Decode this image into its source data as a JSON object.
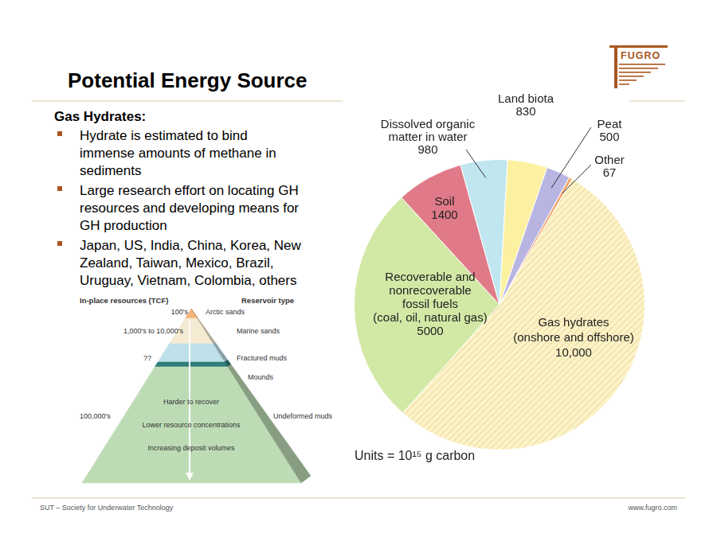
{
  "slide": {
    "title": "Potential Energy Source",
    "logo": "FUGRO",
    "heading": "Gas Hydrates:",
    "bullets": [
      [
        "Hydrate is estimated to bind",
        "immense amounts of methane in",
        "sediments"
      ],
      [
        "Large research effort on locating GH",
        "resources and developing means for",
        "GH production"
      ],
      [
        "Japan, US, India, China, Korea, New",
        "Zealand, Taiwan, Mexico, Brazil,",
        "Uruguay, Vietnam, Colombia, others"
      ]
    ],
    "pyramid": {
      "left_header": "In-place resources (TCF)",
      "right_header": "Reservoir type",
      "layers": [
        {
          "resource": "100's",
          "reservoir": "Arctic sands",
          "color": "#f5b47a"
        },
        {
          "resource": "1,000's to 10,000's",
          "reservoir": "Marine sands",
          "color": "#f5ead2"
        },
        {
          "resource": "??",
          "reservoir": "Fractured muds",
          "color": "#bfe0ea"
        },
        {
          "reservoir": "Mounds",
          "color": "#2f7f7c"
        },
        {
          "resource": "100,000's",
          "reservoir": "Undeformed muds",
          "color": "#bddcb6"
        }
      ],
      "notes": [
        "Harder to recover",
        "Lower resource concentrations",
        "Increasing deposit volumes"
      ]
    },
    "footer_left": "SUT – Society for Underwater Technology",
    "footer_right": "www.fugro.com"
  },
  "chart_data": {
    "type": "pie",
    "categories": [
      "Gas hydrates\n(onshore and offshore)",
      "Recoverable and\nnonrecoverable\nfossil fuels\n(coal, oil, natural gas)",
      "Soil",
      "Dissolved organic\nmatter in water",
      "Land biota",
      "Peat",
      "Other"
    ],
    "values": [
      10000,
      5000,
      1400,
      980,
      830,
      500,
      67
    ],
    "value_labels": [
      "10,000",
      "5000",
      "1400",
      "980",
      "830",
      "500",
      "67"
    ],
    "colors": [
      "#fcf2c6",
      "#d2e9a6",
      "#e07a88",
      "#c0e6ef",
      "#fbf1a0",
      "#b8b5e2",
      "#f5a66e"
    ],
    "data_labels": true,
    "annotations": [
      "Units = 10¹⁵ g carbon"
    ]
  }
}
